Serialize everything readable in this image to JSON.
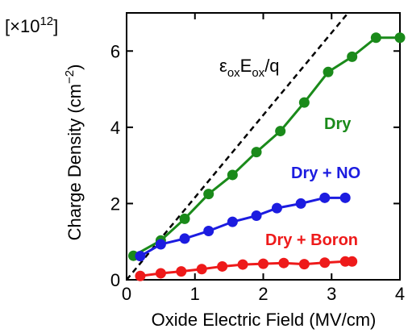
{
  "chart_data": {
    "type": "line",
    "title": "",
    "xlabel": "Oxide Electric Field (MV/cm)",
    "ylabel": "Charge Density (cm",
    "ylabel_exp": "−2",
    "ylabel_close": ")",
    "multiplier": {
      "open": "[×10",
      "exp": "12",
      "close": "]"
    },
    "xlim": [
      0,
      4
    ],
    "ylim": [
      0,
      7
    ],
    "xticks": [
      0,
      1,
      2,
      3,
      4
    ],
    "yticks": [
      0,
      2,
      4,
      6
    ],
    "grid": false,
    "legend": "none",
    "reference_line": {
      "label": {
        "eps": "ε",
        "sub1": "ox",
        "e": "E",
        "sub2": "ox",
        "rest": "/q"
      },
      "slope": 2.16,
      "style": "dashed",
      "color": "#000000"
    },
    "series": [
      {
        "name": "Dry",
        "color": "#1a8a1a",
        "x": [
          0.1,
          0.5,
          0.85,
          1.2,
          1.55,
          1.9,
          2.25,
          2.6,
          2.95,
          3.3,
          3.65,
          4.0
        ],
        "y": [
          0.63,
          1.03,
          1.6,
          2.25,
          2.75,
          3.35,
          3.9,
          4.65,
          5.45,
          5.85,
          6.35,
          6.35
        ]
      },
      {
        "name": "Dry + NO",
        "color": "#1c1ce0",
        "x": [
          0.2,
          0.5,
          0.85,
          1.2,
          1.55,
          1.9,
          2.2,
          2.55,
          2.9,
          3.2
        ],
        "y": [
          0.62,
          0.93,
          1.08,
          1.28,
          1.52,
          1.68,
          1.88,
          2.0,
          2.15,
          2.15
        ]
      },
      {
        "name": "Dry + Boron",
        "color": "#ee1a1a",
        "x": [
          0.2,
          0.5,
          0.8,
          1.1,
          1.4,
          1.7,
          2.0,
          2.3,
          2.6,
          2.9,
          3.2,
          3.3
        ],
        "y": [
          0.1,
          0.17,
          0.22,
          0.28,
          0.35,
          0.4,
          0.42,
          0.44,
          0.41,
          0.45,
          0.48,
          0.48
        ]
      }
    ]
  }
}
